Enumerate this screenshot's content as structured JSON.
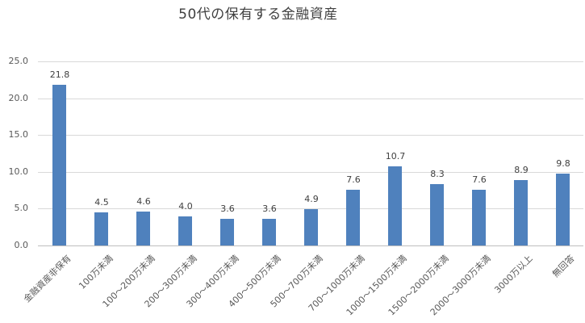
{
  "chart_data": {
    "type": "bar",
    "title": "50代の保有する金融資産",
    "xlabel": "",
    "ylabel": "",
    "ylim": [
      0,
      25
    ],
    "yticks": [
      "0.0",
      "5.0",
      "10.0",
      "15.0",
      "20.0",
      "25.0"
    ],
    "grid": true,
    "legend": null,
    "bar_color": "#4f81bd",
    "categories": [
      "金融資産非保有",
      "100万未満",
      "100～200万未満",
      "200～300万未満",
      "300～400万未満",
      "400～500万未満",
      "500～700万未満",
      "700～1000万未満",
      "1000～1500万未満",
      "1500～2000万未満",
      "2000～3000万未満",
      "3000万以上",
      "無回答"
    ],
    "values": [
      21.8,
      4.5,
      4.6,
      4.0,
      3.6,
      3.6,
      4.9,
      7.6,
      10.7,
      8.3,
      7.6,
      8.9,
      9.8
    ],
    "value_labels": [
      "21.8",
      "4.5",
      "4.6",
      "4.0",
      "3.6",
      "3.6",
      "4.9",
      "7.6",
      "10.7",
      "8.3",
      "7.6",
      "8.9",
      "9.8"
    ]
  }
}
